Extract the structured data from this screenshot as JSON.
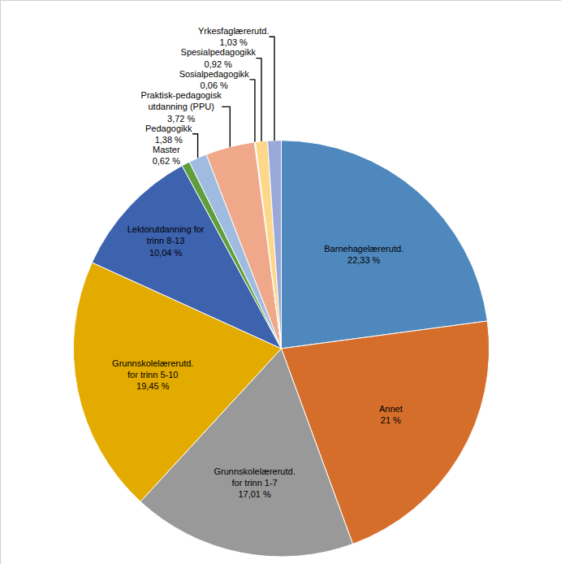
{
  "chart_data": {
    "type": "pie",
    "categories": [
      "Barnehagelærerutd.",
      "Annet",
      "Grunnskolelærerutd. for trinn 1-7",
      "Grunnskolelærerutd. for trinn 5-10",
      "Lektorutdanning for trinn 8-13",
      "Master",
      "Pedagogikk",
      "Praktisk-pedagogisk utdanning (PPU)",
      "Sosialpedagogikk",
      "Spesialpedagogikk",
      "Yrkesfaglærerutd."
    ],
    "values": [
      22.33,
      21,
      17.01,
      19.45,
      10.04,
      0.62,
      1.38,
      3.72,
      0.06,
      0.92,
      1.03
    ],
    "value_labels": [
      "22,33 %",
      "21 %",
      "17,01 %",
      "19,45 %",
      "10,04 %",
      "0,62 %",
      "1,38 %",
      "3,72 %",
      "0,06 %",
      "0,92 %",
      "1,03 %"
    ],
    "colors": [
      "#4f88bd",
      "#d56e2b",
      "#999999",
      "#e3ab00",
      "#3d62ae",
      "#5f9e3c",
      "#9fbbe0",
      "#efa98a",
      "#c9c9c9",
      "#fdd88a",
      "#9aa9da"
    ],
    "data_labels": true
  }
}
